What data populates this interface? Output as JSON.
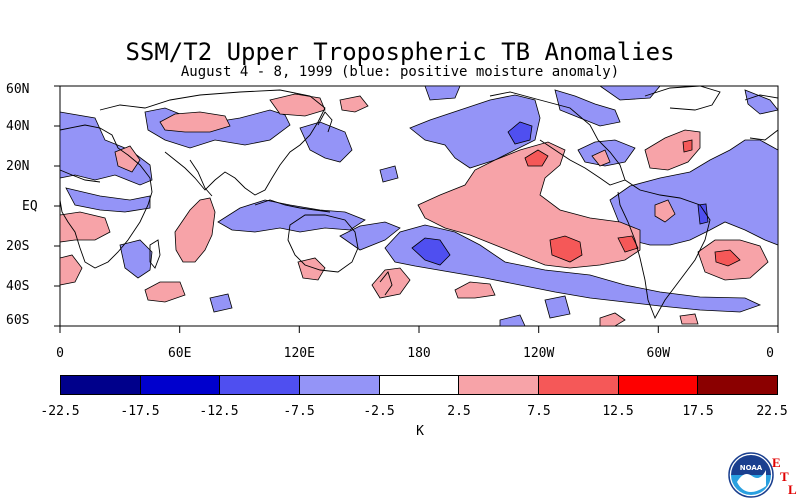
{
  "title": "SSM/T2 Upper Tropospheric TB Anomalies",
  "subtitle": "August 4 - 8, 1999 (blue: positive moisture anomaly)",
  "lat_labels": [
    "60N",
    "40N",
    "20N",
    "EQ",
    "20S",
    "40S",
    "60S"
  ],
  "lon_labels": [
    "0",
    "60E",
    "120E",
    "180",
    "120W",
    "60W",
    "0"
  ],
  "colorbar": {
    "labels": [
      "-22.5",
      "-17.5",
      "-12.5",
      "-7.5",
      "-2.5",
      "2.5",
      "7.5",
      "12.5",
      "17.5",
      "22.5"
    ],
    "colors": [
      "#00008b",
      "#0000cd",
      "#4f4ff0",
      "#9494f7",
      "#ffffff",
      "#f7a3a8",
      "#f55858",
      "#fe0000",
      "#8b0000"
    ],
    "unit": "K"
  },
  "logo": {
    "name": "NOAA",
    "letters": [
      "E",
      "T",
      "L"
    ]
  },
  "colors": {
    "blue_light": "#9494f7",
    "blue_mid": "#4f4ff0",
    "red_light": "#f7a3a8",
    "red_mid": "#f55858"
  }
}
